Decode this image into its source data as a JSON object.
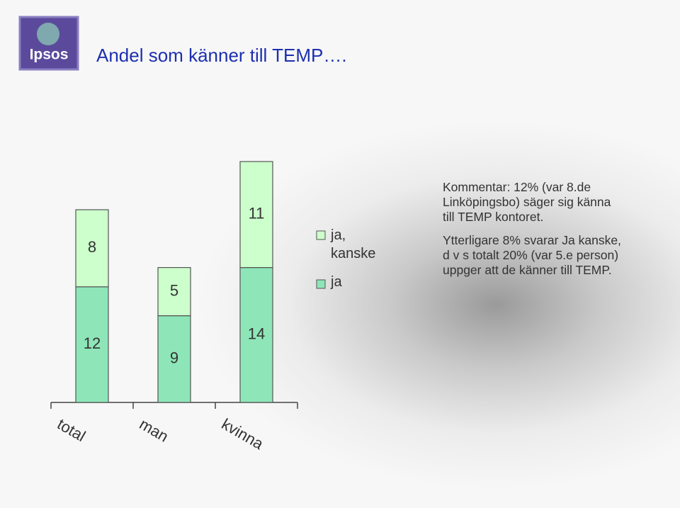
{
  "logo": "Ipsos",
  "chart_data": {
    "type": "stacked-bar",
    "title": "Andel som känner till TEMP….",
    "categories": [
      "total",
      "man",
      "kvinna"
    ],
    "series": [
      {
        "name": "ja",
        "color": "#8ee6b8",
        "values": [
          12,
          9,
          14
        ]
      },
      {
        "name": "ja, kanske",
        "color": "#ccffcc",
        "values": [
          8,
          5,
          11
        ]
      }
    ]
  },
  "comment": {
    "paragraphs": [
      [
        "Kommentar: 12% (var 8.de",
        "Linköpingsbo) säger sig känna",
        "till TEMP kontoret."
      ],
      [
        "Ytterligare 8% svarar Ja kanske,",
        "d v s totalt 20% (var 5.e person)",
        "uppger att de känner till TEMP."
      ]
    ]
  }
}
